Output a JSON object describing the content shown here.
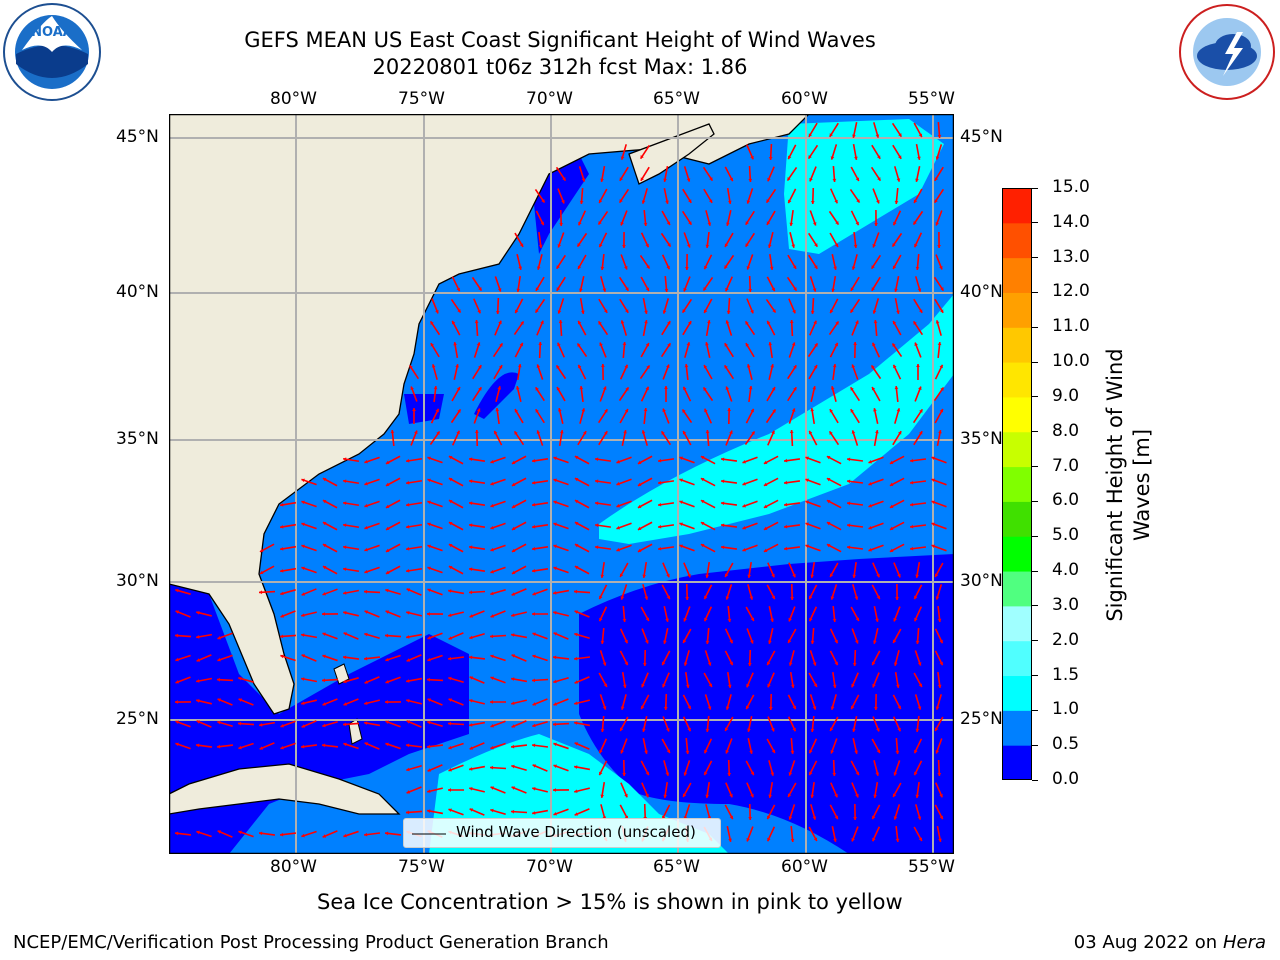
{
  "header": {
    "title_line1": "GEFS MEAN US East Coast Significant Height of Wind Waves",
    "title_line2": "20220801 t06z 312h fcst   Max: 1.86"
  },
  "logos": {
    "noaa_text": "NOAA",
    "noaa_ring": "NATIONAL OCEANIC AND ATMOSPHERIC ADMINISTRATION · U.S. DEPARTMENT OF COMMERCE",
    "nws_ring": "NATIONAL WEATHER SERVICE"
  },
  "axes": {
    "lon_labels": [
      "80°W",
      "75°W",
      "70°W",
      "65°W",
      "60°W",
      "55°W"
    ],
    "lat_labels": [
      "45°N",
      "40°N",
      "35°N",
      "30°N",
      "25°N"
    ]
  },
  "legend": {
    "label": "Wind Wave Direction (unscaled)"
  },
  "colorbar": {
    "label_line1": "Significant Height of Wind",
    "label_line2": "Waves [m]",
    "ticks": [
      "15.0",
      "14.0",
      "13.0",
      "12.0",
      "11.0",
      "10.0",
      "9.0",
      "8.0",
      "7.0",
      "6.0",
      "5.0",
      "4.0",
      "3.0",
      "2.0",
      "1.5",
      "1.0",
      "0.5",
      "0.0"
    ],
    "colors": [
      "#0000ff",
      "#0080ff",
      "#00ffff",
      "#50ffff",
      "#a0ffff",
      "#50ff80",
      "#00ff00",
      "#40e000",
      "#80ff00",
      "#c8ff00",
      "#ffff00",
      "#ffe600",
      "#ffc800",
      "#ffa000",
      "#ff8000",
      "#ff5000",
      "#ff2000"
    ]
  },
  "chart_data": {
    "type": "heatmap",
    "lon_range": [
      -85,
      -54
    ],
    "lat_range": [
      20.5,
      46
    ],
    "bounds_m": [
      0.0,
      0.5,
      1.0,
      1.5,
      2.0,
      3.0,
      4.0,
      5.0,
      6.0,
      7.0,
      8.0,
      9.0,
      10.0,
      11.0,
      12.0,
      13.0,
      14.0,
      15.0
    ],
    "max_value": 1.86,
    "grid": true,
    "vector_color": "#ff0000",
    "land_color": "#efecdc",
    "ocean_base": "#0080ff"
  },
  "notes": {
    "sea_ice": "Sea Ice Concentration > 15% is shown in pink to yellow"
  },
  "footer": {
    "left": "NCEP/EMC/Verification Post Processing Product Generation Branch",
    "right_date": "03 Aug 2022 on",
    "right_host": "Hera"
  }
}
